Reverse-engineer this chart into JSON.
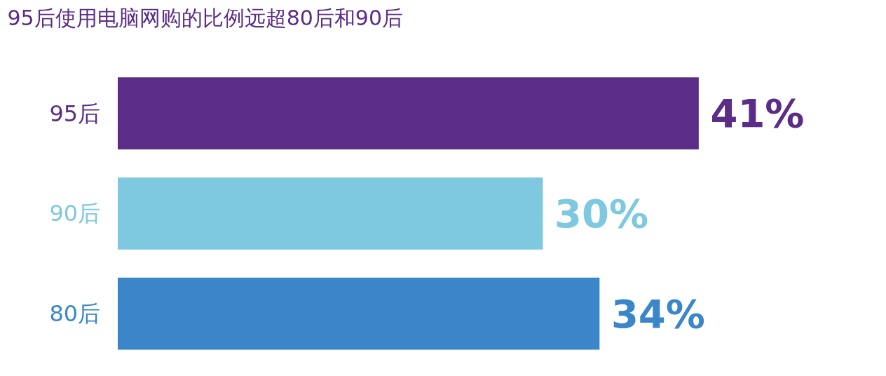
{
  "chart_data": {
    "type": "bar",
    "orientation": "horizontal",
    "title": "95后使用电脑网购的比例远超80后和90后",
    "categories": [
      "95后",
      "90后",
      "80后"
    ],
    "values": [
      41,
      30,
      34
    ],
    "colors": [
      "#5b2d86",
      "#7ec8e0",
      "#3a86c8"
    ],
    "value_labels": [
      "41%",
      "30%",
      "34%"
    ],
    "grid": false
  }
}
